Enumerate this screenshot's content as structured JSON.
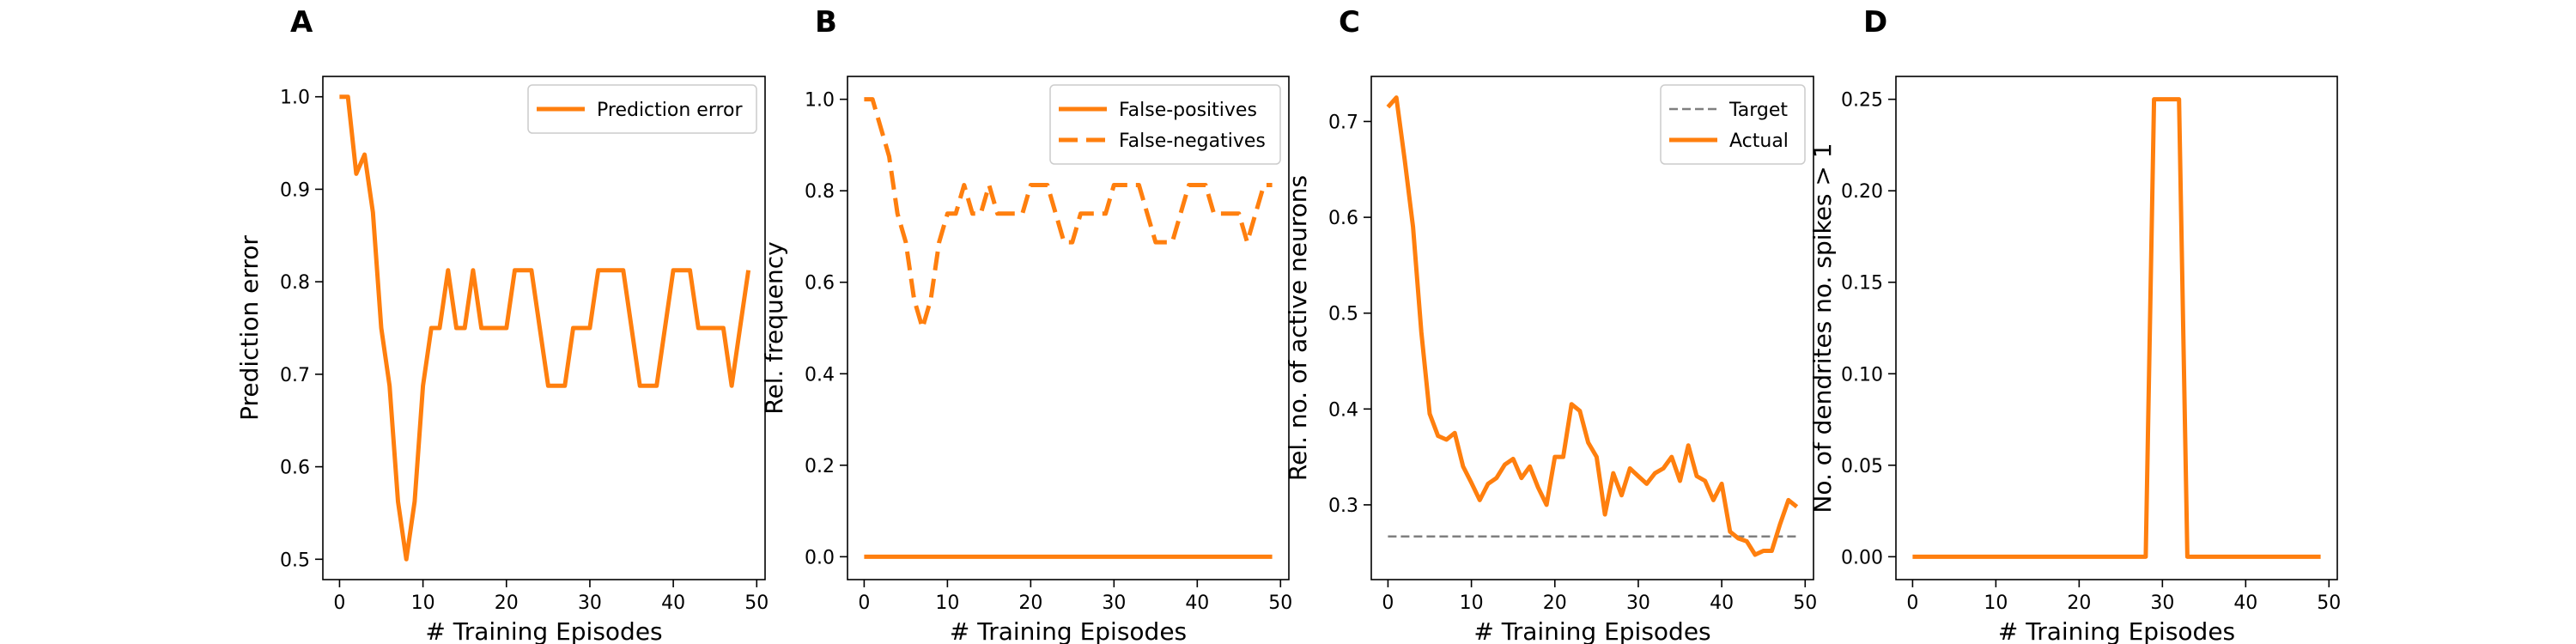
{
  "chart_data": [
    {
      "panel": "A",
      "type": "line",
      "xlabel": "# Training Episodes",
      "ylabel": "Prediction error",
      "xlim": [
        -2,
        51
      ],
      "ylim": [
        0.478,
        1.022
      ],
      "xticks": [
        0,
        10,
        20,
        30,
        40,
        50
      ],
      "yticks": [
        0.5,
        0.6,
        0.7,
        0.8,
        0.9,
        1.0
      ],
      "ytick_labels": [
        "0.5",
        "0.6",
        "0.7",
        "0.8",
        "0.9",
        "1.0"
      ],
      "legend_position": "top-right",
      "series": [
        {
          "name": "Prediction error",
          "color": "#ff7f0e",
          "dash": "solid",
          "x": [
            0,
            1,
            2,
            3,
            4,
            5,
            6,
            7,
            8,
            9,
            10,
            11,
            12,
            13,
            14,
            15,
            16,
            17,
            18,
            19,
            20,
            21,
            22,
            23,
            24,
            25,
            26,
            27,
            28,
            29,
            30,
            31,
            32,
            33,
            34,
            35,
            36,
            37,
            38,
            39,
            40,
            41,
            42,
            43,
            44,
            45,
            46,
            47,
            48,
            49
          ],
          "values": [
            1.0,
            1.0,
            0.9167,
            0.9375,
            0.875,
            0.75,
            0.6875,
            0.5625,
            0.5,
            0.5625,
            0.6875,
            0.75,
            0.75,
            0.8125,
            0.75,
            0.75,
            0.8125,
            0.75,
            0.75,
            0.75,
            0.75,
            0.8125,
            0.8125,
            0.8125,
            0.75,
            0.6875,
            0.6875,
            0.6875,
            0.75,
            0.75,
            0.75,
            0.8125,
            0.8125,
            0.8125,
            0.8125,
            0.75,
            0.6875,
            0.6875,
            0.6875,
            0.75,
            0.8125,
            0.8125,
            0.8125,
            0.75,
            0.75,
            0.75,
            0.75,
            0.6875,
            0.75,
            0.8125
          ]
        }
      ]
    },
    {
      "panel": "B",
      "type": "line",
      "xlabel": "# Training Episodes",
      "ylabel": "Rel. frequency",
      "xlim": [
        -2,
        51
      ],
      "ylim": [
        -0.05,
        1.05
      ],
      "xticks": [
        0,
        10,
        20,
        30,
        40,
        50
      ],
      "yticks": [
        0.0,
        0.2,
        0.4,
        0.6,
        0.8,
        1.0
      ],
      "ytick_labels": [
        "0.0",
        "0.2",
        "0.4",
        "0.6",
        "0.8",
        "1.0"
      ],
      "legend_position": "top-right",
      "series": [
        {
          "name": "False-positives",
          "color": "#ff7f0e",
          "dash": "solid",
          "x": [
            0,
            49
          ],
          "values": [
            0.0,
            0.0
          ]
        },
        {
          "name": "False-negatives",
          "color": "#ff7f0e",
          "dash": "dashed",
          "x": [
            0,
            1,
            2,
            3,
            4,
            5,
            6,
            7,
            8,
            9,
            10,
            11,
            12,
            13,
            14,
            15,
            16,
            17,
            18,
            19,
            20,
            21,
            22,
            23,
            24,
            25,
            26,
            27,
            28,
            29,
            30,
            31,
            32,
            33,
            34,
            35,
            36,
            37,
            38,
            39,
            40,
            41,
            42,
            43,
            44,
            45,
            46,
            47,
            48,
            49
          ],
          "values": [
            1.0,
            1.0,
            0.9375,
            0.875,
            0.75,
            0.6875,
            0.5625,
            0.5,
            0.5625,
            0.6875,
            0.75,
            0.75,
            0.8125,
            0.75,
            0.75,
            0.8125,
            0.75,
            0.75,
            0.75,
            0.75,
            0.8125,
            0.8125,
            0.8125,
            0.75,
            0.6875,
            0.6875,
            0.75,
            0.75,
            0.75,
            0.75,
            0.8125,
            0.8125,
            0.8125,
            0.8125,
            0.75,
            0.6875,
            0.6875,
            0.6875,
            0.75,
            0.8125,
            0.8125,
            0.8125,
            0.75,
            0.75,
            0.75,
            0.75,
            0.6875,
            0.75,
            0.8125,
            0.8125
          ]
        }
      ]
    },
    {
      "panel": "C",
      "type": "line",
      "xlabel": "# Training Episodes",
      "ylabel": "Rel. no. of active neurons",
      "xlim": [
        -2,
        51
      ],
      "ylim": [
        0.222,
        0.747
      ],
      "xticks": [
        0,
        10,
        20,
        30,
        40,
        50
      ],
      "yticks": [
        0.3,
        0.4,
        0.5,
        0.6,
        0.7
      ],
      "ytick_labels": [
        "0.3",
        "0.4",
        "0.5",
        "0.6",
        "0.7"
      ],
      "legend_position": "top-right",
      "series": [
        {
          "name": "Target",
          "color": "#7f7f7f",
          "dash": "dashed",
          "x": [
            0,
            49
          ],
          "values": [
            0.267,
            0.267
          ]
        },
        {
          "name": "Actual",
          "color": "#ff7f0e",
          "dash": "solid",
          "x": [
            0,
            1,
            2,
            3,
            4,
            5,
            6,
            7,
            8,
            9,
            10,
            11,
            12,
            13,
            14,
            15,
            16,
            17,
            18,
            19,
            20,
            21,
            22,
            23,
            24,
            25,
            26,
            27,
            28,
            29,
            30,
            31,
            32,
            33,
            34,
            35,
            36,
            37,
            38,
            39,
            40,
            41,
            42,
            43,
            44,
            45,
            46,
            47,
            48,
            49
          ],
          "values": [
            0.715,
            0.725,
            0.66,
            0.59,
            0.48,
            0.395,
            0.372,
            0.368,
            0.375,
            0.34,
            0.323,
            0.305,
            0.322,
            0.328,
            0.342,
            0.348,
            0.328,
            0.34,
            0.318,
            0.3,
            0.35,
            0.35,
            0.405,
            0.398,
            0.365,
            0.35,
            0.29,
            0.333,
            0.31,
            0.338,
            0.33,
            0.322,
            0.333,
            0.338,
            0.35,
            0.325,
            0.362,
            0.33,
            0.325,
            0.305,
            0.322,
            0.272,
            0.265,
            0.262,
            0.248,
            0.252,
            0.252,
            0.28,
            0.305,
            0.298
          ]
        }
      ]
    },
    {
      "panel": "D",
      "type": "line",
      "xlabel": "# Training Episodes",
      "ylabel": "No. of dendrites no. spikes > 1",
      "xlim": [
        -2,
        51
      ],
      "ylim": [
        -0.0125,
        0.2625
      ],
      "xticks": [
        0,
        10,
        20,
        30,
        40,
        50
      ],
      "yticks": [
        0.0,
        0.05,
        0.1,
        0.15,
        0.2,
        0.25
      ],
      "ytick_labels": [
        "0.00",
        "0.05",
        "0.10",
        "0.15",
        "0.20",
        "0.25"
      ],
      "series": [
        {
          "name": "",
          "color": "#ff7f0e",
          "dash": "solid",
          "x": [
            0,
            28,
            29,
            30,
            31,
            32,
            33,
            49
          ],
          "values": [
            0,
            0,
            0.25,
            0.25,
            0.25,
            0.25,
            0,
            0
          ]
        }
      ]
    }
  ]
}
